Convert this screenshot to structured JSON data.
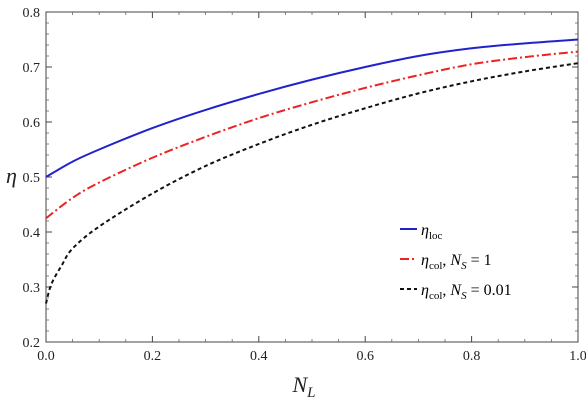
{
  "chart_data": {
    "type": "line",
    "xlabel": "N",
    "xlabel_sub": "L",
    "ylabel": "η",
    "xlim": [
      0.0,
      1.0
    ],
    "ylim": [
      0.2,
      0.8
    ],
    "xticks": [
      "0.0",
      "0.2",
      "0.4",
      "0.6",
      "0.8",
      "1.0"
    ],
    "yticks": [
      "0.2",
      "0.3",
      "0.4",
      "0.5",
      "0.6",
      "0.7",
      "0.8"
    ],
    "legend_position": "center-right",
    "grid": false,
    "series": [
      {
        "legend": {
          "main": "η",
          "sub": "loc",
          "tail": ""
        },
        "color": "#2222cc",
        "dash": "solid",
        "x": [
          0.0,
          0.05,
          0.1,
          0.2,
          0.3,
          0.4,
          0.5,
          0.6,
          0.7,
          0.8,
          0.9,
          1.0
        ],
        "y": [
          0.5,
          0.528,
          0.55,
          0.589,
          0.622,
          0.651,
          0.677,
          0.7,
          0.72,
          0.734,
          0.743,
          0.75
        ]
      },
      {
        "legend": {
          "main": "η",
          "sub": "col",
          "tail": ", N_S = 1"
        },
        "color": "#ee2222",
        "dash": "dashdot",
        "x": [
          0.0,
          0.05,
          0.1,
          0.2,
          0.3,
          0.4,
          0.5,
          0.6,
          0.7,
          0.8,
          0.9,
          1.0
        ],
        "y": [
          0.425,
          0.462,
          0.49,
          0.535,
          0.573,
          0.607,
          0.636,
          0.662,
          0.685,
          0.705,
          0.718,
          0.728
        ]
      },
      {
        "legend": {
          "main": "η",
          "sub": "col",
          "tail": ", N_S = 0.01"
        },
        "color": "#111111",
        "dash": "dashed",
        "x": [
          0.0,
          0.01,
          0.03,
          0.05,
          0.1,
          0.2,
          0.3,
          0.4,
          0.5,
          0.6,
          0.7,
          0.8,
          0.9,
          1.0
        ],
        "y": [
          0.27,
          0.305,
          0.34,
          0.37,
          0.41,
          0.47,
          0.52,
          0.56,
          0.595,
          0.625,
          0.652,
          0.674,
          0.692,
          0.707
        ]
      }
    ]
  }
}
